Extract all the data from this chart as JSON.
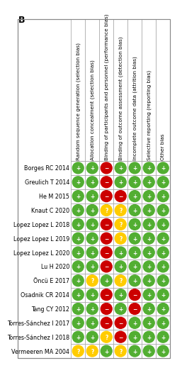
{
  "title_label": "B",
  "columns": [
    "Random sequence generation (selection bias)",
    "Allocation concealment (selection bias)",
    "Binding of participants and personnel (performance bias)",
    "Binding of outcome assessment (detection bias)",
    "Incomplete outcome data (attrition bias)",
    "Selective reporting (reporting bias)",
    "Other bias"
  ],
  "studies": [
    "Borges RC 2014",
    "Greulich T 2014",
    "He M 2015",
    "Knaut C 2020",
    "Lopez Lopez L 2018",
    "Lopez Lopez L 2019",
    "Lopez Lopez L 2020",
    "Lu H 2020",
    "Öncü E 2017",
    "Osadnik CR 2014",
    "Tang CY 2012",
    "Torres-Sánchez I 2017",
    "Torres-Sánchez I 2018",
    "Vermeeren MA 2004"
  ],
  "data": [
    [
      "G",
      "G",
      "R",
      "G",
      "G",
      "G",
      "G"
    ],
    [
      "G",
      "G",
      "R",
      "G",
      "G",
      "G",
      "G"
    ],
    [
      "G",
      "G",
      "R",
      "R",
      "G",
      "G",
      "G"
    ],
    [
      "G",
      "G",
      "Y",
      "Y",
      "G",
      "G",
      "G"
    ],
    [
      "G",
      "G",
      "R",
      "Y",
      "G",
      "G",
      "G"
    ],
    [
      "G",
      "G",
      "R",
      "Y",
      "G",
      "G",
      "G"
    ],
    [
      "G",
      "G",
      "R",
      "G",
      "G",
      "G",
      "G"
    ],
    [
      "G",
      "G",
      "R",
      "G",
      "G",
      "G",
      "G"
    ],
    [
      "G",
      "Y",
      "G",
      "Y",
      "G",
      "G",
      "G"
    ],
    [
      "G",
      "G",
      "R",
      "G",
      "R",
      "G",
      "G"
    ],
    [
      "G",
      "G",
      "R",
      "G",
      "R",
      "G",
      "G"
    ],
    [
      "G",
      "G",
      "R",
      "R",
      "G",
      "G",
      "G"
    ],
    [
      "G",
      "G",
      "Y",
      "R",
      "G",
      "G",
      "G"
    ],
    [
      "Y",
      "Y",
      "G",
      "Y",
      "G",
      "G",
      "G"
    ]
  ],
  "color_map": {
    "G": "#52ae32",
    "R": "#cc0000",
    "Y": "#ffcc00"
  },
  "symbol_map": {
    "G": "+",
    "R": "−",
    "Y": "?"
  },
  "bg_color": "#ffffff",
  "grid_color": "#aaaaaa",
  "cell_bg": "#ffffff",
  "header_fontsize": 5.2,
  "study_fontsize": 5.8,
  "symbol_fontsize": 5.5,
  "text_color": "#ffffff",
  "border_color": "#888888"
}
